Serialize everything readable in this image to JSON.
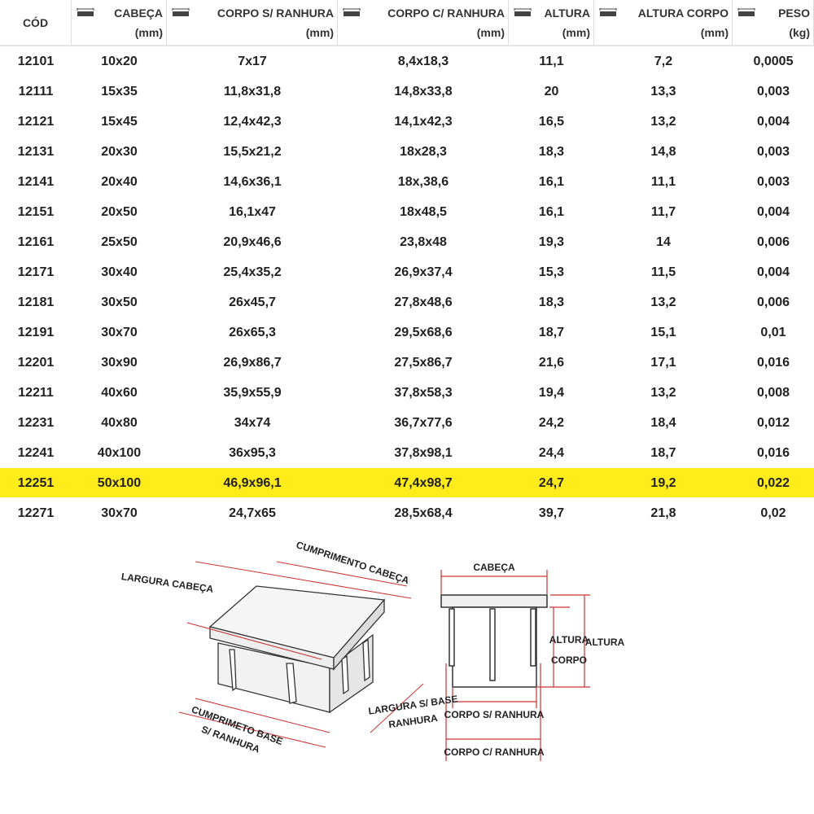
{
  "table": {
    "headers": [
      {
        "title": "CÓD"
      },
      {
        "title": "CABEÇA",
        "unit": "(mm)"
      },
      {
        "title": "CORPO S/ RANHURA",
        "unit": "(mm)"
      },
      {
        "title": "CORPO C/ RANHURA",
        "unit": "(mm)"
      },
      {
        "title": "ALTURA",
        "unit": "(mm)"
      },
      {
        "title": "ALTURA CORPO",
        "unit": "(mm)"
      },
      {
        "title": "PESO",
        "unit": "(kg)"
      }
    ],
    "rows": [
      [
        "12101",
        "10x20",
        "7x17",
        "8,4x18,3",
        "11,1",
        "7,2",
        "0,0005"
      ],
      [
        "12111",
        "15x35",
        "11,8x31,8",
        "14,8x33,8",
        "20",
        "13,3",
        "0,003"
      ],
      [
        "12121",
        "15x45",
        "12,4x42,3",
        "14,1x42,3",
        "16,5",
        "13,2",
        "0,004"
      ],
      [
        "12131",
        "20x30",
        "15,5x21,2",
        "18x28,3",
        "18,3",
        "14,8",
        "0,003"
      ],
      [
        "12141",
        "20x40",
        "14,6x36,1",
        "18x,38,6",
        "16,1",
        "11,1",
        "0,003"
      ],
      [
        "12151",
        "20x50",
        "16,1x47",
        "18x48,5",
        "16,1",
        "11,7",
        "0,004"
      ],
      [
        "12161",
        "25x50",
        "20,9x46,6",
        "23,8x48",
        "19,3",
        "14",
        "0,006"
      ],
      [
        "12171",
        "30x40",
        "25,4x35,2",
        "26,9x37,4",
        "15,3",
        "11,5",
        "0,004"
      ],
      [
        "12181",
        "30x50",
        "26x45,7",
        "27,8x48,6",
        "18,3",
        "13,2",
        "0,006"
      ],
      [
        "12191",
        "30x70",
        "26x65,3",
        "29,5x68,6",
        "18,7",
        "15,1",
        "0,01"
      ],
      [
        "12201",
        "30x90",
        "26,9x86,7",
        "27,5x86,7",
        "21,6",
        "17,1",
        "0,016"
      ],
      [
        "12211",
        "40x60",
        "35,9x55,9",
        "37,8x58,3",
        "19,4",
        "13,2",
        "0,008"
      ],
      [
        "12231",
        "40x80",
        "34x74",
        "36,7x77,6",
        "24,2",
        "18,4",
        "0,012"
      ],
      [
        "12241",
        "40x100",
        "36x95,3",
        "37,8x98,1",
        "24,4",
        "18,7",
        "0,016"
      ],
      [
        "12251",
        "50x100",
        "46,9x96,1",
        "47,4x98,7",
        "24,7",
        "19,2",
        "0,022"
      ],
      [
        "12271",
        "30x70",
        "24,7x65",
        "28,5x68,4",
        "39,7",
        "21,8",
        "0,02"
      ]
    ]
  },
  "diagram": {
    "labels": {
      "largura_cabeca": "LARGURA CABEÇA",
      "cumprimento_cabeca": "CUMPRIMENTO CABEÇA",
      "cumprimento_base": "CUMPRIMETO BASE",
      "cumprimento_base_2": "S/ RANHURA",
      "largura_base": "LARGURA S/ BASE",
      "largura_base_2": "RANHURA",
      "cabeca": "CABEÇA",
      "altura_corpo": "ALTURA",
      "altura_corpo_2": "CORPO",
      "altura": "ALTURA",
      "corpo_s": "CORPO S/ RANHURA",
      "corpo_c": "CORPO C/ RANHURA"
    }
  }
}
